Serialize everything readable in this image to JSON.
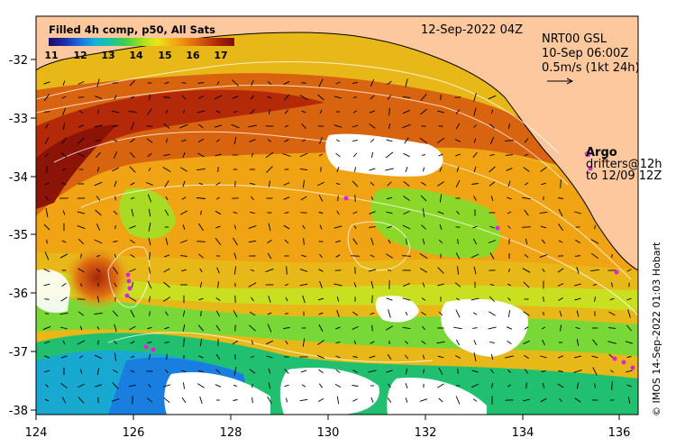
{
  "legend": {
    "title": "Filled 4h comp, p50, All Sats",
    "scale_labels": [
      "11",
      "12",
      "13",
      "14",
      "15",
      "16",
      "17"
    ]
  },
  "header": {
    "date": "12-Sep-2022 04Z",
    "product": "NRT00 GSL",
    "velocity_time": "10-Sep 06:00Z",
    "vector_scale": "0.5m/s (1kt 24h)"
  },
  "argo": {
    "label": "Argo",
    "drifters_line": "drifters@12h",
    "to_line": "to 12/09 12Z"
  },
  "credit": "© IMOS 14-Sep-2022 01:03 Hobart",
  "axes": {
    "lon_labels": [
      "124",
      "126",
      "128",
      "130",
      "132",
      "134",
      "136"
    ],
    "lat_labels": [
      "-32",
      "-33",
      "-34",
      "-35",
      "-36",
      "-37",
      "-38"
    ]
  },
  "colors": {
    "land": "#fdc89e",
    "warm": "#b42a08",
    "cool": "#1aa8d8",
    "argo": "#e020e0"
  }
}
